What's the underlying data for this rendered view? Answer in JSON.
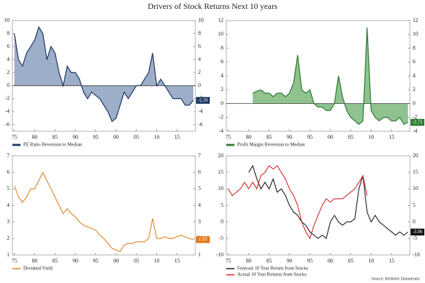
{
  "title": "Drivers of Stock Returns Next 10 years",
  "source": "Source: Refinitiv Datastream",
  "chart_data": [
    {
      "type": "area",
      "fill": "#9daec8",
      "x": [
        1975,
        1976,
        1977,
        1978,
        1979,
        1980,
        1981,
        1982,
        1983,
        1984,
        1985,
        1986,
        1987,
        1988,
        1989,
        1990,
        1991,
        1992,
        1993,
        1994,
        1995,
        1996,
        1997,
        1998,
        1999,
        2000,
        2001,
        2002,
        2003,
        2004,
        2005,
        2006,
        2007,
        2008,
        2009,
        2010,
        2011,
        2012,
        2013,
        2014,
        2015,
        2016,
        2017,
        2018,
        2019
      ],
      "series": [
        {
          "name": "PE Ratio Reversion to Median",
          "color": "#1f3864",
          "values": [
            8,
            4,
            3,
            5,
            6,
            7,
            9,
            8,
            4,
            6,
            5,
            2,
            0,
            3,
            2,
            2,
            1,
            -1,
            -2,
            -1,
            -1.5,
            -2,
            -3,
            -4,
            -5.5,
            -5,
            -3,
            -1,
            -2,
            -1,
            0,
            0,
            1,
            2,
            5,
            0,
            1,
            0,
            -1,
            -2,
            -2,
            -2,
            -3,
            -3,
            -2.26
          ]
        }
      ],
      "xlim": [
        1974.5,
        2019.5
      ],
      "xticks": [
        {
          "value": 1975,
          "label": "75"
        },
        {
          "value": 1980,
          "label": "80"
        },
        {
          "value": 1985,
          "label": "85"
        },
        {
          "value": 1990,
          "label": "90"
        },
        {
          "value": 1995,
          "label": "95"
        },
        {
          "value": 2000,
          "label": "00"
        },
        {
          "value": 2005,
          "label": "05"
        },
        {
          "value": 2010,
          "label": "10"
        },
        {
          "value": 2015,
          "label": "15"
        }
      ],
      "ylim": [
        -7,
        10
      ],
      "yticks": [
        -6,
        -4,
        -2,
        0,
        2,
        4,
        6,
        8,
        10
      ]
    },
    {
      "type": "area",
      "fill": "#8fc28f",
      "x": [
        1981,
        1982,
        1983,
        1984,
        1985,
        1986,
        1987,
        1988,
        1989,
        1990,
        1991,
        1992,
        1993,
        1994,
        1995,
        1996,
        1997,
        1998,
        1999,
        2000,
        2001,
        2002,
        2003,
        2004,
        2005,
        2006,
        2007,
        2008,
        2009,
        2010,
        2011,
        2012,
        2013,
        2014,
        2015,
        2016,
        2017,
        2018,
        2019
      ],
      "series": [
        {
          "name": "Profit Margin Reversion to Median",
          "color": "#2e7d32",
          "values": [
            1.5,
            1.8,
            2,
            1.5,
            1.5,
            1,
            1.5,
            1.5,
            1,
            1.5,
            3,
            7,
            2,
            1.5,
            2,
            0,
            -0.5,
            -0.5,
            -1,
            -1,
            0,
            4,
            1,
            -1,
            -2,
            -2.5,
            -3,
            -2.5,
            11,
            -1,
            -2,
            -2.5,
            -2,
            -2,
            -2.5,
            -2.5,
            -2,
            -3,
            -2.71
          ]
        }
      ],
      "xlim": [
        1974.5,
        2019.5
      ],
      "xticks": [
        {
          "value": 1975,
          "label": "75"
        },
        {
          "value": 1980,
          "label": "80"
        },
        {
          "value": 1985,
          "label": "85"
        },
        {
          "value": 1990,
          "label": "90"
        },
        {
          "value": 1995,
          "label": "95"
        },
        {
          "value": 2000,
          "label": "00"
        },
        {
          "value": 2005,
          "label": "05"
        },
        {
          "value": 2010,
          "label": "10"
        },
        {
          "value": 2015,
          "label": "15"
        }
      ],
      "ylim": [
        -4,
        12
      ],
      "yticks": [
        -4,
        -2,
        0,
        2,
        4,
        6,
        8,
        10,
        12
      ]
    },
    {
      "type": "line",
      "x": [
        1975,
        1976,
        1977,
        1978,
        1979,
        1980,
        1981,
        1982,
        1983,
        1984,
        1985,
        1986,
        1987,
        1988,
        1989,
        1990,
        1991,
        1992,
        1993,
        1994,
        1995,
        1996,
        1997,
        1998,
        1999,
        2000,
        2001,
        2002,
        2003,
        2004,
        2005,
        2006,
        2007,
        2008,
        2009,
        2010,
        2011,
        2012,
        2013,
        2014,
        2015,
        2016,
        2017,
        2018,
        2019
      ],
      "series": [
        {
          "name": "Dividend Yield",
          "color": "#e07b1a",
          "values": [
            5.2,
            4.5,
            4.2,
            4.5,
            5,
            5,
            5.5,
            6,
            5.5,
            5,
            4.5,
            4,
            3.5,
            3.8,
            3.5,
            3.3,
            3,
            2.8,
            2.7,
            2.6,
            2.5,
            2.2,
            2,
            1.7,
            1.4,
            1.3,
            1.2,
            1.6,
            1.7,
            1.7,
            1.8,
            1.8,
            1.8,
            2,
            3.2,
            2,
            2,
            2.1,
            2,
            2,
            2.1,
            2.2,
            2.1,
            2,
            1.93
          ]
        }
      ],
      "xlim": [
        1974.5,
        2019.5
      ],
      "xticks": [
        {
          "value": 1975,
          "label": "75"
        },
        {
          "value": 1980,
          "label": "80"
        },
        {
          "value": 1985,
          "label": "85"
        },
        {
          "value": 1990,
          "label": "90"
        },
        {
          "value": 1995,
          "label": "95"
        },
        {
          "value": 2000,
          "label": "00"
        },
        {
          "value": 2005,
          "label": "05"
        },
        {
          "value": 2010,
          "label": "10"
        },
        {
          "value": 2015,
          "label": "15"
        }
      ],
      "ylim": [
        1,
        7
      ],
      "yticks": [
        1,
        2,
        3,
        4,
        5,
        6,
        7
      ]
    },
    {
      "type": "line",
      "x": [
        1975,
        1976,
        1977,
        1978,
        1979,
        1980,
        1981,
        1982,
        1983,
        1984,
        1985,
        1986,
        1987,
        1988,
        1989,
        1990,
        1991,
        1992,
        1993,
        1994,
        1995,
        1996,
        1997,
        1998,
        1999,
        2000,
        2001,
        2002,
        2003,
        2004,
        2005,
        2006,
        2007,
        2008,
        2009,
        2010,
        2011,
        2012,
        2013,
        2014,
        2015,
        2016,
        2017,
        2018,
        2019
      ],
      "series": [
        {
          "name": "Forecast 10 Year Return from Stocks",
          "color": "#111111",
          "values": [
            null,
            null,
            null,
            null,
            null,
            15,
            17,
            13,
            10,
            12,
            10,
            13,
            9,
            10,
            8,
            5,
            3,
            2,
            0,
            -1,
            -3,
            -4,
            -5,
            -4,
            -5,
            0,
            2,
            0,
            -1,
            0,
            0,
            1,
            10,
            14,
            3,
            0,
            2,
            0,
            -1,
            -2,
            -3,
            -4,
            -3,
            -4,
            -3.06
          ]
        },
        {
          "name": "Actual 10 Year Returns from Stocks",
          "color": "#d42020",
          "values": [
            10,
            8,
            9,
            10,
            12,
            10,
            12,
            10,
            14,
            15,
            17,
            16,
            17,
            15,
            13,
            10,
            8,
            5,
            0,
            -3,
            -5,
            -1,
            2,
            5,
            7,
            6,
            7,
            7,
            7,
            8,
            9,
            10,
            12,
            14,
            8,
            null,
            null,
            null,
            null,
            null,
            null,
            null,
            null,
            null,
            null
          ]
        }
      ],
      "xlim": [
        1974.5,
        2019.5
      ],
      "xticks": [
        {
          "value": 1975,
          "label": "75"
        },
        {
          "value": 1980,
          "label": "80"
        },
        {
          "value": 1985,
          "label": "85"
        },
        {
          "value": 1990,
          "label": "90"
        },
        {
          "value": 1995,
          "label": "95"
        },
        {
          "value": 2000,
          "label": "00"
        },
        {
          "value": 2005,
          "label": "05"
        },
        {
          "value": 2010,
          "label": "10"
        },
        {
          "value": 2015,
          "label": "15"
        }
      ],
      "ylim": [
        -10,
        20
      ],
      "yticks": [
        -10,
        -5,
        0,
        5,
        10,
        15,
        20
      ]
    }
  ]
}
